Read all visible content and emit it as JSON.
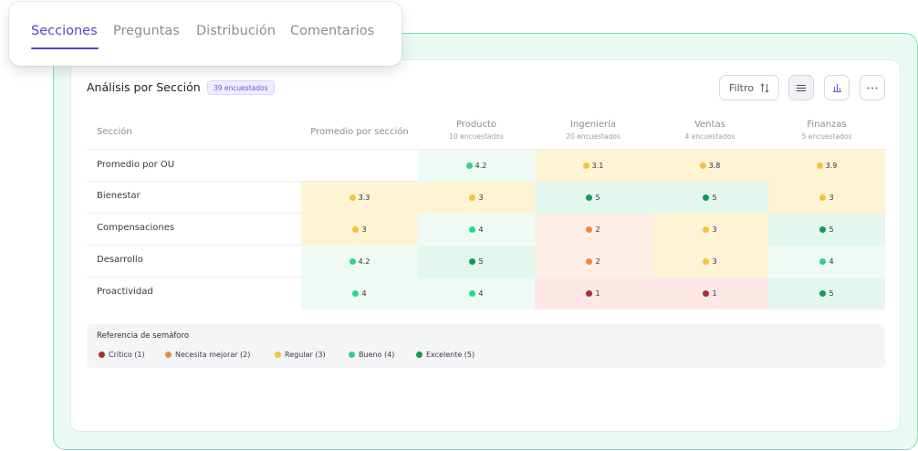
{
  "tabs": [
    {
      "label": "Secciones",
      "active": true
    },
    {
      "label": "Preguntas",
      "active": false
    },
    {
      "label": "Distribución",
      "active": false
    },
    {
      "label": "Comentarios",
      "active": false
    }
  ],
  "panel": {
    "title": "Análisis por Sección",
    "badge": "39 encuestados"
  },
  "toolbar": {
    "filter_label": "Filtro",
    "filter_icon": "sort-icon",
    "list_icon": "list-icon",
    "chart_icon": "bar-chart-icon",
    "more_icon": "more-icon"
  },
  "table": {
    "section_header": "Sección",
    "average_header": "Promedio por sección",
    "columns": [
      {
        "name": "Producto",
        "sub": "10 encuestados"
      },
      {
        "name": "Ingeniería",
        "sub": "20 encuestados"
      },
      {
        "name": "Ventas",
        "sub": "4 encuestados"
      },
      {
        "name": "Finanzas",
        "sub": "5 encuestados"
      }
    ],
    "rows": [
      {
        "label": "Promedio por OU",
        "average": null,
        "values": [
          {
            "v": "4.2",
            "level": "bueno"
          },
          {
            "v": "3.1",
            "level": "regular"
          },
          {
            "v": "3.8",
            "level": "regular"
          },
          {
            "v": "3.9",
            "level": "regular"
          }
        ]
      },
      {
        "label": "Bienestar",
        "average": {
          "v": "3.3",
          "level": "regular"
        },
        "values": [
          {
            "v": "3",
            "level": "regular"
          },
          {
            "v": "5",
            "level": "excelente"
          },
          {
            "v": "5",
            "level": "excelente"
          },
          {
            "v": "3",
            "level": "regular"
          }
        ]
      },
      {
        "label": "Compensaciones",
        "average": {
          "v": "3",
          "level": "regular"
        },
        "values": [
          {
            "v": "4",
            "level": "bueno"
          },
          {
            "v": "2",
            "level": "mejorar"
          },
          {
            "v": "3",
            "level": "regular"
          },
          {
            "v": "5",
            "level": "excelente"
          }
        ]
      },
      {
        "label": "Desarrollo",
        "average": {
          "v": "4.2",
          "level": "bueno"
        },
        "values": [
          {
            "v": "5",
            "level": "excelente"
          },
          {
            "v": "2",
            "level": "mejorar"
          },
          {
            "v": "3",
            "level": "regular"
          },
          {
            "v": "4",
            "level": "bueno"
          }
        ]
      },
      {
        "label": "Proactividad",
        "average": {
          "v": "4",
          "level": "bueno"
        },
        "values": [
          {
            "v": "4",
            "level": "bueno"
          },
          {
            "v": "1",
            "level": "critico"
          },
          {
            "v": "1",
            "level": "critico"
          },
          {
            "v": "5",
            "level": "excelente"
          }
        ]
      }
    ]
  },
  "levels": {
    "critico": {
      "dot": "#a8322d",
      "bg": "#fde7e7"
    },
    "mejorar": {
      "dot": "#ef8a3c",
      "bg": "#fdeee7"
    },
    "regular": {
      "dot": "#f5c33b",
      "bg": "#fdf3d5"
    },
    "bueno": {
      "dot": "#2ed38d",
      "bg": "#effaf5"
    },
    "excelente": {
      "dot": "#149a58",
      "bg": "#e3f7ee"
    }
  },
  "legend": {
    "title": "Referencia de semáforo",
    "items": [
      {
        "label": "Crítico (1)",
        "level": "critico"
      },
      {
        "label": "Necesita mejorar (2)",
        "level": "mejorar"
      },
      {
        "label": "Regular (3)",
        "level": "regular"
      },
      {
        "label": "Bueno (4)",
        "level": "bueno"
      },
      {
        "label": "Excelente (5)",
        "level": "excelente"
      }
    ]
  }
}
